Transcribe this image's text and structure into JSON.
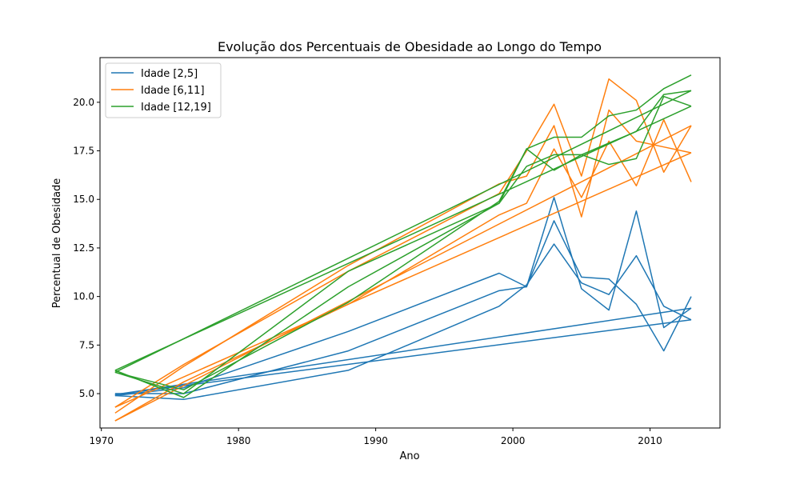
{
  "chart_data": {
    "type": "line",
    "title": "Evolução dos Percentuais de Obesidade ao Longo do Tempo",
    "xlabel": "Ano",
    "ylabel": "Percentual de Obesidade",
    "xlim": [
      1969.9,
      2015.1
    ],
    "ylim": [
      3.23,
      22.3
    ],
    "xticks": [
      1970,
      1980,
      1990,
      2000,
      2010
    ],
    "yticks": [
      5.0,
      7.5,
      10.0,
      12.5,
      15.0,
      17.5,
      20.0
    ],
    "grid": false,
    "legend": "top-left",
    "series": [
      {
        "name": "Idade [2,5]",
        "color": "#1f77b4",
        "lines": [
          {
            "x": [
              1971,
              1976,
              1988,
              1999,
              2001,
              2003,
              2005,
              2007,
              2009,
              2011,
              2013
            ],
            "y": [
              5.0,
              5.0,
              7.2,
              10.3,
              10.5,
              13.9,
              11.0,
              10.9,
              9.6,
              7.2,
              10.0
            ]
          },
          {
            "x": [
              1971,
              1976,
              1988,
              1999,
              2001,
              2003,
              2005,
              2007,
              2009,
              2011,
              2013
            ],
            "y": [
              4.9,
              4.7,
              6.2,
              9.5,
              10.6,
              12.7,
              10.7,
              10.1,
              12.1,
              9.5,
              8.8
            ]
          },
          {
            "x": [
              1971,
              1976,
              1988,
              1999,
              2001,
              2003,
              2005,
              2007,
              2009,
              2011,
              2013
            ],
            "y": [
              4.9,
              5.3,
              8.2,
              11.2,
              10.5,
              15.1,
              10.4,
              9.3,
              14.4,
              8.4,
              9.4
            ]
          },
          {
            "x": [
              1971,
              2013
            ],
            "y": [
              4.95,
              8.8
            ]
          },
          {
            "x": [
              1971,
              2013
            ],
            "y": [
              4.95,
              9.4
            ]
          }
        ]
      },
      {
        "name": "Idade [6,11]",
        "color": "#ff7f0e",
        "lines": [
          {
            "x": [
              1971,
              1976,
              1988,
              1999,
              2001,
              2003,
              2005,
              2007,
              2009,
              2011,
              2013
            ],
            "y": [
              4.3,
              6.5,
              11.3,
              15.3,
              17.5,
              19.9,
              16.2,
              21.2,
              20.1,
              16.4,
              18.8
            ]
          },
          {
            "x": [
              1971,
              1976,
              1988,
              1999,
              2001,
              2003,
              2005,
              2007,
              2009,
              2011,
              2013
            ],
            "y": [
              4.0,
              6.4,
              11.6,
              15.8,
              16.2,
              18.8,
              14.1,
              19.6,
              18.0,
              17.7,
              17.4
            ]
          },
          {
            "x": [
              1971,
              1976,
              1988,
              1999,
              2001,
              2003,
              2005,
              2007,
              2009,
              2011,
              2013
            ],
            "y": [
              3.6,
              5.6,
              9.6,
              14.2,
              14.8,
              17.6,
              15.1,
              18.0,
              15.7,
              19.1,
              15.9
            ]
          },
          {
            "x": [
              1971,
              2013
            ],
            "y": [
              3.6,
              18.8
            ]
          },
          {
            "x": [
              1971,
              2013
            ],
            "y": [
              4.3,
              17.4
            ]
          }
        ]
      },
      {
        "name": "Idade [12,19]",
        "color": "#2ca02c",
        "lines": [
          {
            "x": [
              1971,
              1976,
              1988,
              1999,
              2001,
              2003,
              2005,
              2007,
              2009,
              2011,
              2013
            ],
            "y": [
              6.1,
              5.0,
              11.3,
              14.8,
              17.6,
              18.2,
              18.2,
              19.3,
              19.6,
              20.7,
              21.4
            ]
          },
          {
            "x": [
              1971,
              1976,
              1988,
              1999,
              2001,
              2003,
              2005,
              2007,
              2009,
              2011,
              2013
            ],
            "y": [
              6.2,
              4.8,
              10.5,
              14.8,
              16.7,
              17.3,
              17.3,
              16.8,
              17.1,
              20.3,
              19.8
            ]
          },
          {
            "x": [
              1971,
              1976,
              1988,
              1999,
              2001,
              2003,
              2005,
              2007,
              2009,
              2011,
              2013
            ],
            "y": [
              6.1,
              5.2,
              9.7,
              14.9,
              17.6,
              16.5,
              17.3,
              17.9,
              18.5,
              20.4,
              20.6
            ]
          },
          {
            "x": [
              1971,
              2013
            ],
            "y": [
              6.1,
              20.6
            ]
          },
          {
            "x": [
              1971,
              2013
            ],
            "y": [
              6.2,
              19.8
            ]
          }
        ]
      }
    ]
  }
}
